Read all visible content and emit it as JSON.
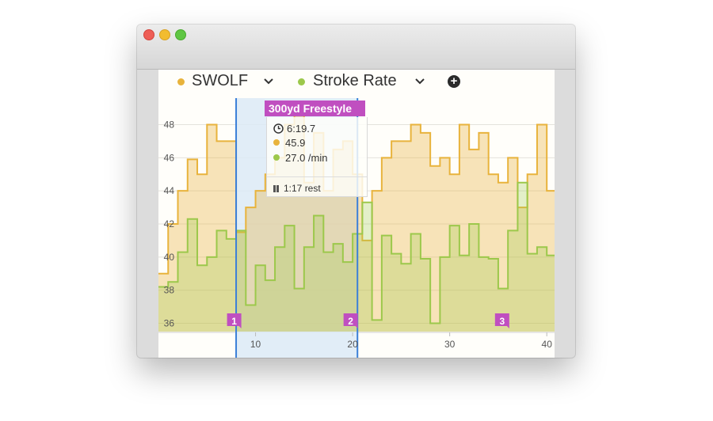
{
  "window": {
    "controls": [
      "close",
      "minimize",
      "zoom"
    ]
  },
  "legend": {
    "series": [
      {
        "label": "SWOLF",
        "color": "#e8b33c"
      },
      {
        "label": "Stroke Rate",
        "color": "#9cc84b"
      }
    ],
    "add_icon": "plus-circle-icon"
  },
  "tooltip": {
    "title": "300yd Freestyle",
    "time": "6:19.7",
    "swolf": "45.9",
    "stroke_rate": "27.0 /min",
    "rest": "1:17 rest"
  },
  "markers": [
    "1",
    "2",
    "3"
  ],
  "chart_data": {
    "type": "area",
    "x_ticks": [
      "10",
      "20",
      "30",
      "40"
    ],
    "y_ticks": [
      "36",
      "38",
      "40",
      "42",
      "44",
      "46",
      "48"
    ],
    "ylim": [
      35.5,
      49.6
    ],
    "xlim": [
      0,
      40.8
    ],
    "selection": [
      8,
      20.5
    ],
    "marker_x": [
      7.8,
      19.8,
      35.4
    ],
    "x": [
      0,
      1,
      2,
      3,
      4,
      5,
      6,
      7,
      8,
      9,
      10,
      11,
      12,
      13,
      14,
      15,
      16,
      17,
      18,
      19,
      20,
      21,
      22,
      23,
      24,
      25,
      26,
      27,
      28,
      29,
      30,
      31,
      32,
      33,
      34,
      35,
      36,
      37,
      38,
      39,
      40
    ],
    "series": [
      {
        "name": "SWOLF",
        "color": "#e8b33c",
        "values": [
          39.0,
          42.0,
          44.0,
          45.9,
          45.0,
          48.0,
          47.0,
          47.0,
          41.5,
          43.0,
          44.0,
          45.0,
          46.0,
          48.0,
          49.0,
          44.5,
          47.5,
          44.0,
          46.5,
          47.0,
          45.0,
          41.0,
          44.0,
          46.0,
          47.0,
          47.0,
          48.0,
          47.5,
          45.5,
          46.0,
          45.0,
          48.0,
          46.5,
          47.5,
          45.0,
          44.5,
          46.0,
          43.0,
          45.0,
          48.0,
          44.0
        ]
      },
      {
        "name": "Stroke Rate",
        "color": "#9cc84b",
        "values": [
          38.2,
          38.5,
          40.3,
          42.3,
          39.5,
          40.0,
          41.6,
          41.1,
          41.6,
          37.1,
          39.5,
          38.6,
          40.6,
          41.9,
          38.1,
          40.6,
          42.5,
          40.3,
          40.8,
          39.7,
          41.4,
          43.3,
          36.2,
          41.3,
          40.2,
          39.6,
          41.4,
          39.9,
          36.0,
          40.0,
          41.9,
          40.1,
          42.0,
          40.0,
          39.9,
          38.1,
          41.6,
          44.5,
          40.2,
          40.6,
          40.1
        ]
      }
    ]
  }
}
